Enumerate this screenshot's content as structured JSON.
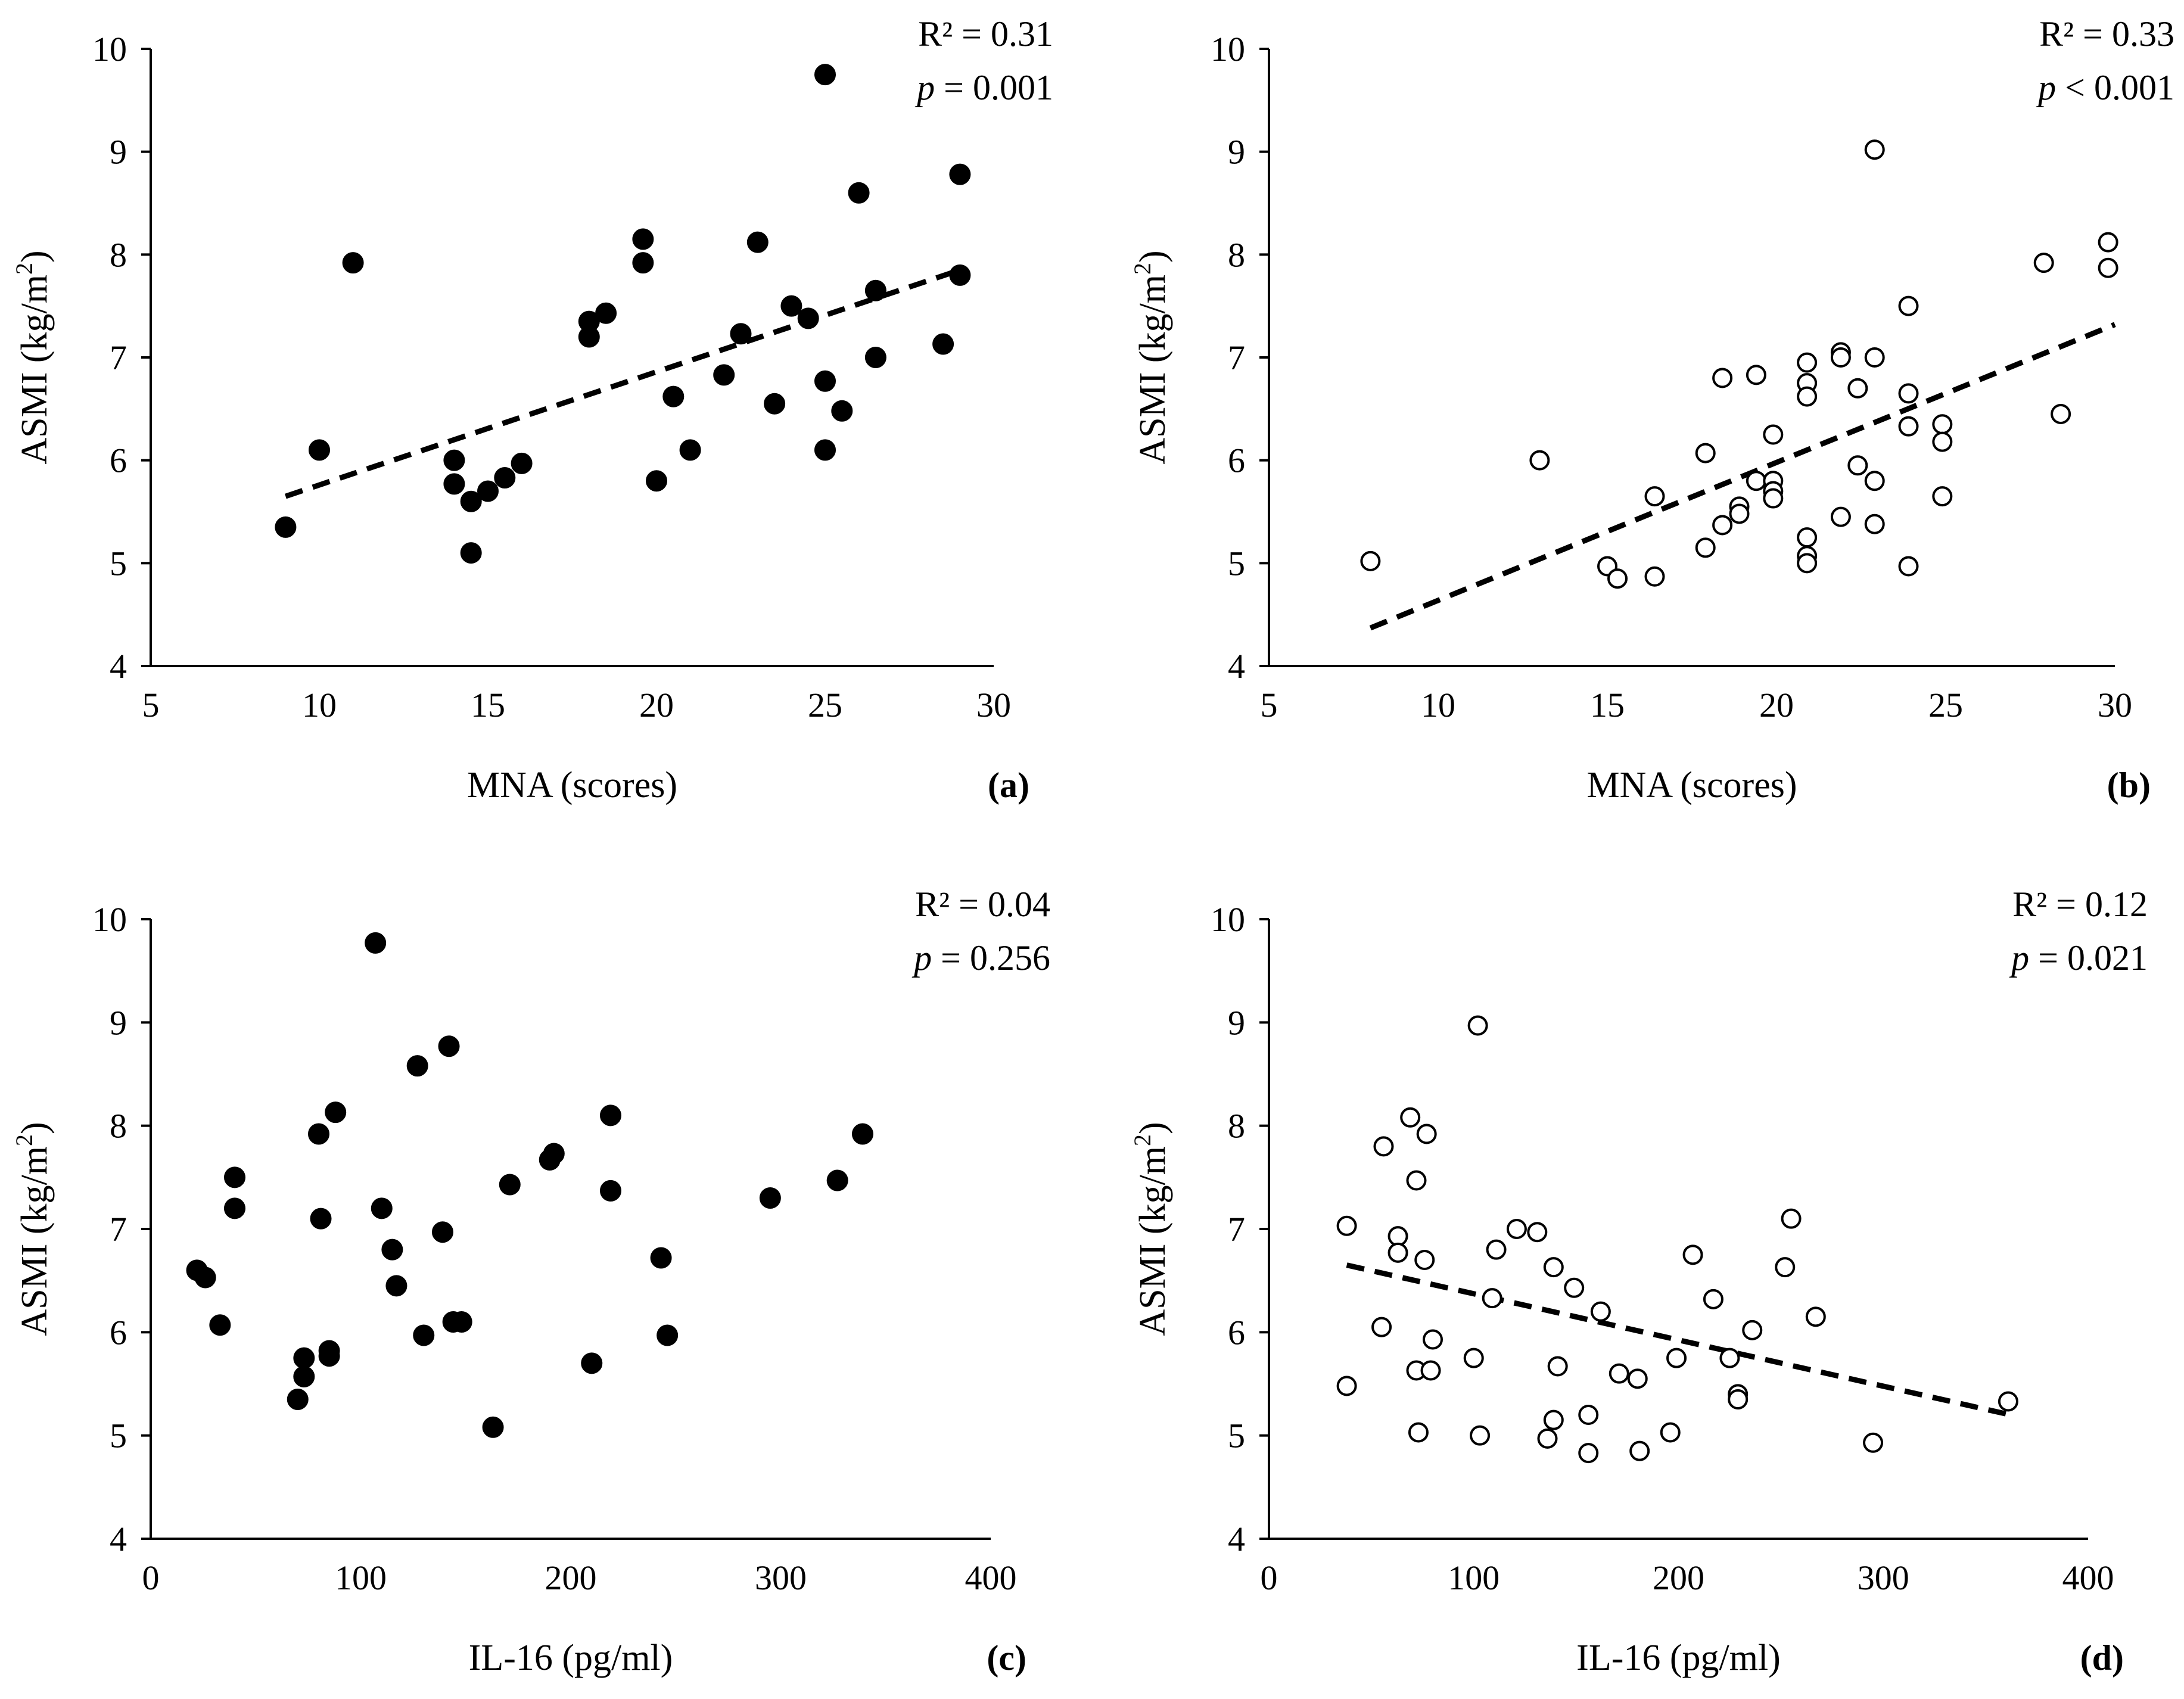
{
  "chart_data": [
    {
      "type": "scatter",
      "panel": "(a)",
      "marker": "filled",
      "xlabel": "MNA (scores)",
      "ylabel_main": "ASMI (kg/m",
      "ylabel_sup": "2",
      "ylabel_tail": ")",
      "xlim": [
        5,
        30
      ],
      "ylim": [
        4,
        10
      ],
      "xticks": [
        5,
        10,
        15,
        20,
        25,
        30
      ],
      "yticks": [
        4,
        5,
        6,
        7,
        8,
        9,
        10
      ],
      "r2_text": "R² = 0.31",
      "p_symbol": "p",
      "p_rest": " = 0.001",
      "trend": {
        "x": [
          9,
          29
        ],
        "y": [
          5.65,
          7.85
        ]
      },
      "points": [
        [
          9,
          5.35
        ],
        [
          10,
          6.1
        ],
        [
          11,
          7.92
        ],
        [
          14,
          6.0
        ],
        [
          14,
          5.77
        ],
        [
          14.5,
          5.6
        ],
        [
          14.5,
          5.1
        ],
        [
          15,
          5.7
        ],
        [
          15.5,
          5.83
        ],
        [
          16,
          5.97
        ],
        [
          18,
          7.35
        ],
        [
          18,
          7.2
        ],
        [
          18.5,
          7.43
        ],
        [
          19.6,
          8.15
        ],
        [
          19.6,
          7.92
        ],
        [
          20,
          5.8
        ],
        [
          20.5,
          6.62
        ],
        [
          21,
          6.1
        ],
        [
          22,
          6.83
        ],
        [
          22.5,
          7.23
        ],
        [
          23,
          8.12
        ],
        [
          23.5,
          6.55
        ],
        [
          24,
          7.5
        ],
        [
          24.5,
          7.38
        ],
        [
          25,
          9.75
        ],
        [
          25,
          6.77
        ],
        [
          25,
          6.1
        ],
        [
          25.5,
          6.48
        ],
        [
          26,
          8.6
        ],
        [
          26.5,
          7.65
        ],
        [
          26.5,
          7.0
        ],
        [
          28.5,
          7.13
        ],
        [
          29,
          8.78
        ],
        [
          29,
          7.8
        ]
      ]
    },
    {
      "type": "scatter",
      "panel": "(b)",
      "marker": "open",
      "xlabel": "MNA (scores)",
      "ylabel_main": "ASMI (kg/m",
      "ylabel_sup": "2",
      "ylabel_tail": ")",
      "xlim": [
        5,
        30
      ],
      "ylim": [
        4,
        10
      ],
      "xticks": [
        5,
        10,
        15,
        20,
        25,
        30
      ],
      "yticks": [
        4,
        5,
        6,
        7,
        8,
        9,
        10
      ],
      "r2_text": "R² = 0.33",
      "p_symbol": "p",
      "p_rest": " < 0.001",
      "trend": {
        "x": [
          8,
          30
        ],
        "y": [
          4.37,
          7.32
        ]
      },
      "points": [
        [
          8,
          5.02
        ],
        [
          13,
          6.0
        ],
        [
          15,
          4.97
        ],
        [
          15.3,
          4.85
        ],
        [
          16.4,
          5.65
        ],
        [
          16.4,
          4.87
        ],
        [
          17.9,
          6.07
        ],
        [
          17.9,
          5.15
        ],
        [
          18.4,
          6.8
        ],
        [
          18.4,
          5.37
        ],
        [
          18.9,
          5.55
        ],
        [
          18.9,
          5.48
        ],
        [
          19.4,
          6.83
        ],
        [
          19.4,
          5.8
        ],
        [
          19.9,
          6.25
        ],
        [
          19.9,
          5.8
        ],
        [
          19.9,
          5.7
        ],
        [
          19.9,
          5.63
        ],
        [
          20.9,
          6.95
        ],
        [
          20.9,
          6.75
        ],
        [
          20.9,
          6.62
        ],
        [
          20.9,
          5.25
        ],
        [
          20.9,
          5.07
        ],
        [
          20.9,
          5.0
        ],
        [
          21.9,
          7.05
        ],
        [
          21.9,
          7.0
        ],
        [
          21.9,
          5.45
        ],
        [
          22.4,
          6.7
        ],
        [
          22.4,
          5.95
        ],
        [
          22.9,
          9.02
        ],
        [
          22.9,
          7.0
        ],
        [
          22.9,
          5.8
        ],
        [
          22.9,
          5.38
        ],
        [
          23.9,
          7.5
        ],
        [
          23.9,
          6.65
        ],
        [
          23.9,
          6.33
        ],
        [
          23.9,
          4.97
        ],
        [
          24.9,
          6.35
        ],
        [
          24.9,
          6.18
        ],
        [
          24.9,
          5.65
        ],
        [
          27.9,
          7.92
        ],
        [
          28.4,
          6.45
        ],
        [
          29.8,
          8.12
        ],
        [
          29.8,
          7.87
        ]
      ]
    },
    {
      "type": "scatter",
      "panel": "(c)",
      "marker": "filled",
      "xlabel": "IL-16 (pg/ml)",
      "ylabel_main": "ASMI (kg/m",
      "ylabel_sup": "2",
      "ylabel_tail": ")",
      "xlim": [
        0,
        400
      ],
      "ylim": [
        4,
        10
      ],
      "xticks": [
        0,
        100,
        200,
        300,
        400
      ],
      "yticks": [
        4,
        5,
        6,
        7,
        8,
        9,
        10
      ],
      "r2_text": "R² = 0.04",
      "p_symbol": "p",
      "p_rest": " = 0.256",
      "trend": null,
      "points": [
        [
          22,
          6.6
        ],
        [
          26,
          6.53
        ],
        [
          33,
          6.07
        ],
        [
          40,
          7.5
        ],
        [
          40,
          7.2
        ],
        [
          70,
          5.35
        ],
        [
          73,
          5.75
        ],
        [
          73,
          5.57
        ],
        [
          80,
          7.92
        ],
        [
          81,
          7.1
        ],
        [
          85,
          5.82
        ],
        [
          85,
          5.77
        ],
        [
          88,
          8.13
        ],
        [
          107,
          9.77
        ],
        [
          110,
          7.2
        ],
        [
          115,
          6.8
        ],
        [
          117,
          6.45
        ],
        [
          127,
          8.58
        ],
        [
          130,
          5.97
        ],
        [
          139,
          6.97
        ],
        [
          142,
          8.77
        ],
        [
          144,
          6.1
        ],
        [
          148,
          6.1
        ],
        [
          163,
          5.08
        ],
        [
          171,
          7.43
        ],
        [
          190,
          7.67
        ],
        [
          192,
          7.73
        ],
        [
          210,
          5.7
        ],
        [
          219,
          8.1
        ],
        [
          219,
          7.37
        ],
        [
          243,
          6.72
        ],
        [
          246,
          5.97
        ],
        [
          295,
          7.3
        ],
        [
          327,
          7.47
        ],
        [
          339,
          7.92
        ]
      ]
    },
    {
      "type": "scatter",
      "panel": "(d)",
      "marker": "open",
      "xlabel": "IL-16 (pg/ml)",
      "ylabel_main": "ASMI (kg/m",
      "ylabel_sup": "2",
      "ylabel_tail": ")",
      "xlim": [
        0,
        400
      ],
      "ylim": [
        4,
        10
      ],
      "xticks": [
        0,
        100,
        200,
        300,
        400
      ],
      "yticks": [
        4,
        5,
        6,
        7,
        8,
        9,
        10
      ],
      "r2_text": "R² = 0.12",
      "p_symbol": "p",
      "p_rest": " = 0.021",
      "trend": {
        "x": [
          38,
          362
        ],
        "y": [
          6.65,
          5.2
        ]
      },
      "points": [
        [
          38,
          7.03
        ],
        [
          38,
          5.48
        ],
        [
          55,
          6.05
        ],
        [
          56,
          7.8
        ],
        [
          63,
          6.93
        ],
        [
          63,
          6.77
        ],
        [
          69,
          8.08
        ],
        [
          72,
          7.47
        ],
        [
          72,
          5.63
        ],
        [
          73,
          5.03
        ],
        [
          76,
          6.7
        ],
        [
          77,
          7.92
        ],
        [
          79,
          5.63
        ],
        [
          80,
          5.93
        ],
        [
          100,
          5.75
        ],
        [
          102,
          8.97
        ],
        [
          103,
          5.0
        ],
        [
          109,
          6.33
        ],
        [
          111,
          6.8
        ],
        [
          121,
          7.0
        ],
        [
          131,
          6.97
        ],
        [
          136,
          4.97
        ],
        [
          139,
          6.63
        ],
        [
          139,
          5.15
        ],
        [
          141,
          5.67
        ],
        [
          149,
          6.43
        ],
        [
          156,
          5.2
        ],
        [
          156,
          4.83
        ],
        [
          162,
          6.2
        ],
        [
          171,
          5.6
        ],
        [
          180,
          5.55
        ],
        [
          181,
          4.85
        ],
        [
          196,
          5.03
        ],
        [
          199,
          5.75
        ],
        [
          207,
          6.75
        ],
        [
          217,
          6.32
        ],
        [
          225,
          5.75
        ],
        [
          229,
          5.4
        ],
        [
          229,
          5.35
        ],
        [
          236,
          6.02
        ],
        [
          252,
          6.63
        ],
        [
          255,
          7.1
        ],
        [
          267,
          6.15
        ],
        [
          295,
          4.93
        ],
        [
          361,
          5.33
        ]
      ]
    }
  ]
}
